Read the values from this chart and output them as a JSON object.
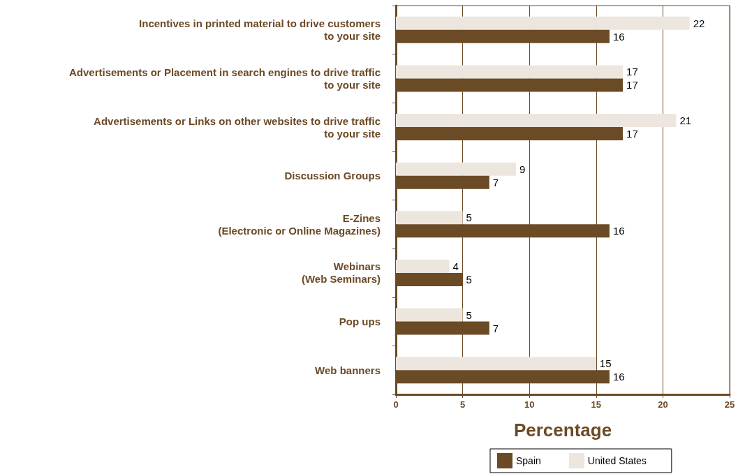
{
  "chart_data": {
    "type": "bar",
    "orientation": "horizontal",
    "xlabel": "Percentage",
    "categories": [
      "Incentives in printed material to drive customers\nto your site",
      "Advertisements or Placement in search engines to drive traffic\nto your site",
      "Advertisements or Links on other websites to drive traffic\nto your site",
      "Discussion Groups",
      "E-Zines\n(Electronic or Online Magazines)",
      "Webinars\n(Web Seminars)",
      "Pop ups",
      "Web banners"
    ],
    "series": [
      {
        "name": "Spain",
        "color": "#6b4a26",
        "values": [
          16,
          17,
          17,
          7,
          16,
          5,
          7,
          16
        ]
      },
      {
        "name": "United States",
        "color": "#ede6de",
        "values": [
          22,
          17,
          21,
          9,
          5,
          4,
          5,
          15
        ]
      }
    ],
    "xlim": [
      0,
      25
    ],
    "xticks": [
      0,
      5,
      10,
      15,
      20,
      25
    ],
    "grid": "x",
    "legend": "bottom",
    "data_labels": true
  }
}
